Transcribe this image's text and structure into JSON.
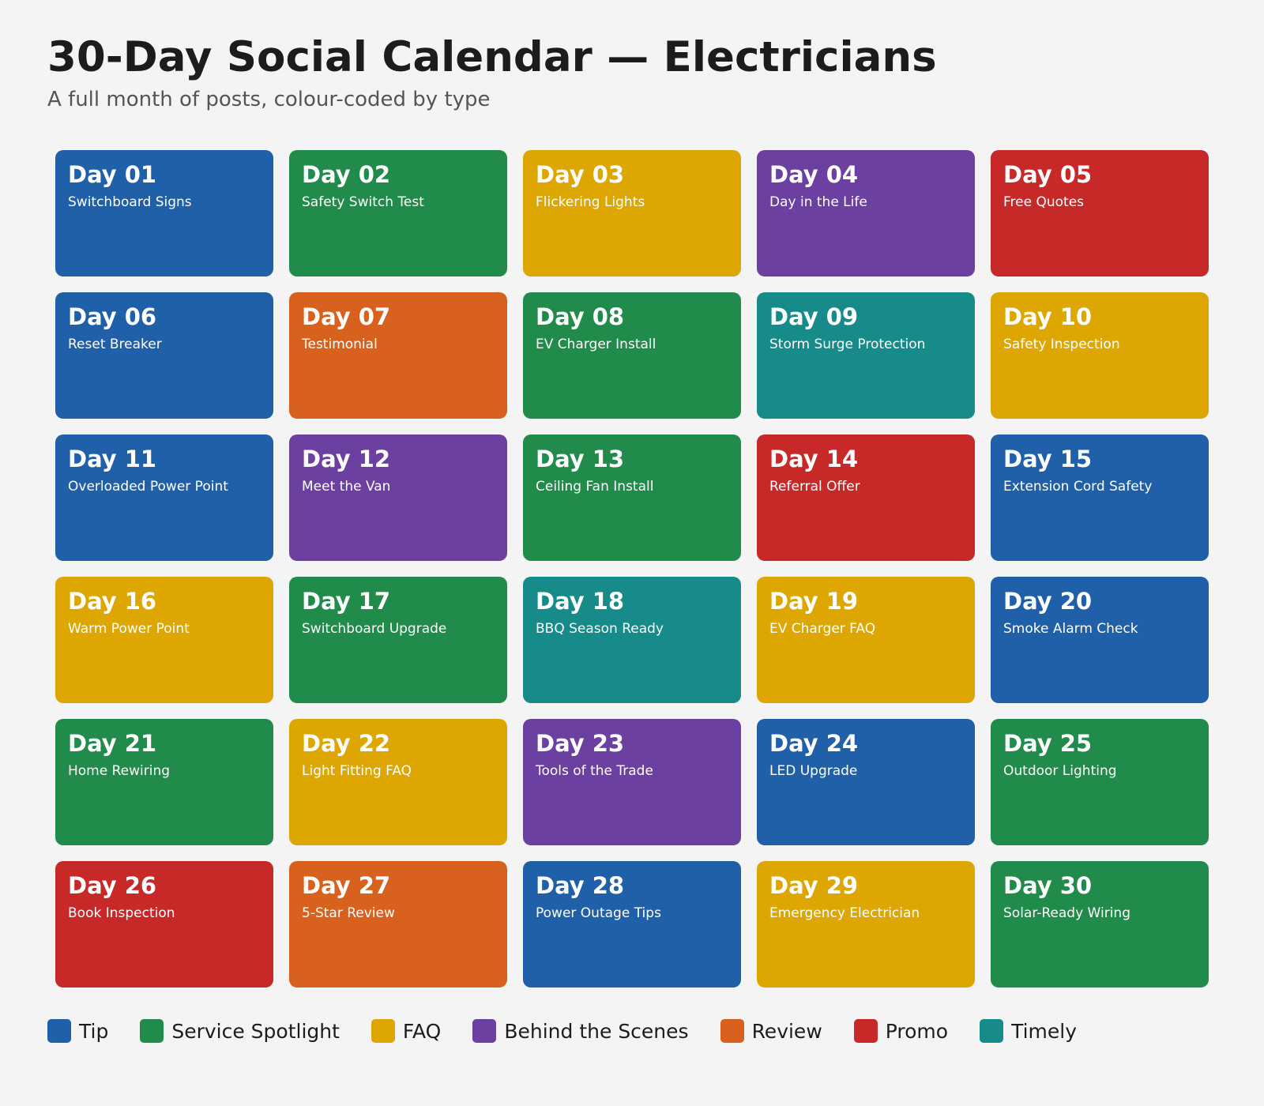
{
  "title": "30-Day Social Calendar — Electricians",
  "subtitle": "A full month of posts, colour-coded by type",
  "legend": {
    "items": [
      {
        "label": "Tip",
        "color": "#2060a8"
      },
      {
        "label": "Service Spotlight",
        "color": "#208b4a"
      },
      {
        "label": "FAQ",
        "color": "#dea600"
      },
      {
        "label": "Behind the Scenes",
        "color": "#6c40a0"
      },
      {
        "label": "Review",
        "color": "#d9611e"
      },
      {
        "label": "Promo",
        "color": "#c72828"
      },
      {
        "label": "Timely",
        "color": "#178a8a"
      }
    ]
  },
  "calendar": {
    "days": [
      {
        "day": "Day 01",
        "topic": "Switchboard Signs",
        "color": "#2060a8"
      },
      {
        "day": "Day 02",
        "topic": "Safety Switch Test",
        "color": "#208b4a"
      },
      {
        "day": "Day 03",
        "topic": "Flickering Lights",
        "color": "#dea600"
      },
      {
        "day": "Day 04",
        "topic": "Day in the Life",
        "color": "#6c40a0"
      },
      {
        "day": "Day 05",
        "topic": "Free Quotes",
        "color": "#c72828"
      },
      {
        "day": "Day 06",
        "topic": "Reset Breaker",
        "color": "#2060a8"
      },
      {
        "day": "Day 07",
        "topic": "Testimonial",
        "color": "#d9611e"
      },
      {
        "day": "Day 08",
        "topic": "EV Charger Install",
        "color": "#208b4a"
      },
      {
        "day": "Day 09",
        "topic": "Storm Surge Protection",
        "color": "#178a8a"
      },
      {
        "day": "Day 10",
        "topic": "Safety Inspection",
        "color": "#dea600"
      },
      {
        "day": "Day 11",
        "topic": "Overloaded Power Point",
        "color": "#2060a8"
      },
      {
        "day": "Day 12",
        "topic": "Meet the Van",
        "color": "#6c40a0"
      },
      {
        "day": "Day 13",
        "topic": "Ceiling Fan Install",
        "color": "#208b4a"
      },
      {
        "day": "Day 14",
        "topic": "Referral Offer",
        "color": "#c72828"
      },
      {
        "day": "Day 15",
        "topic": "Extension Cord Safety",
        "color": "#2060a8"
      },
      {
        "day": "Day 16",
        "topic": "Warm Power Point",
        "color": "#dea600"
      },
      {
        "day": "Day 17",
        "topic": "Switchboard Upgrade",
        "color": "#208b4a"
      },
      {
        "day": "Day 18",
        "topic": "BBQ Season Ready",
        "color": "#178a8a"
      },
      {
        "day": "Day 19",
        "topic": "EV Charger FAQ",
        "color": "#dea600"
      },
      {
        "day": "Day 20",
        "topic": "Smoke Alarm Check",
        "color": "#2060a8"
      },
      {
        "day": "Day 21",
        "topic": "Home Rewiring",
        "color": "#208b4a"
      },
      {
        "day": "Day 22",
        "topic": "Light Fitting FAQ",
        "color": "#dea600"
      },
      {
        "day": "Day 23",
        "topic": "Tools of the Trade",
        "color": "#6c40a0"
      },
      {
        "day": "Day 24",
        "topic": "LED Upgrade",
        "color": "#2060a8"
      },
      {
        "day": "Day 25",
        "topic": "Outdoor Lighting",
        "color": "#208b4a"
      },
      {
        "day": "Day 26",
        "topic": "Book Inspection",
        "color": "#c72828"
      },
      {
        "day": "Day 27",
        "topic": "5-Star Review",
        "color": "#d9611e"
      },
      {
        "day": "Day 28",
        "topic": "Power Outage Tips",
        "color": "#2060a8"
      },
      {
        "day": "Day 29",
        "topic": "Emergency Electrician",
        "color": "#dea600"
      },
      {
        "day": "Day 30",
        "topic": "Solar-Ready Wiring",
        "color": "#208b4a"
      }
    ]
  }
}
